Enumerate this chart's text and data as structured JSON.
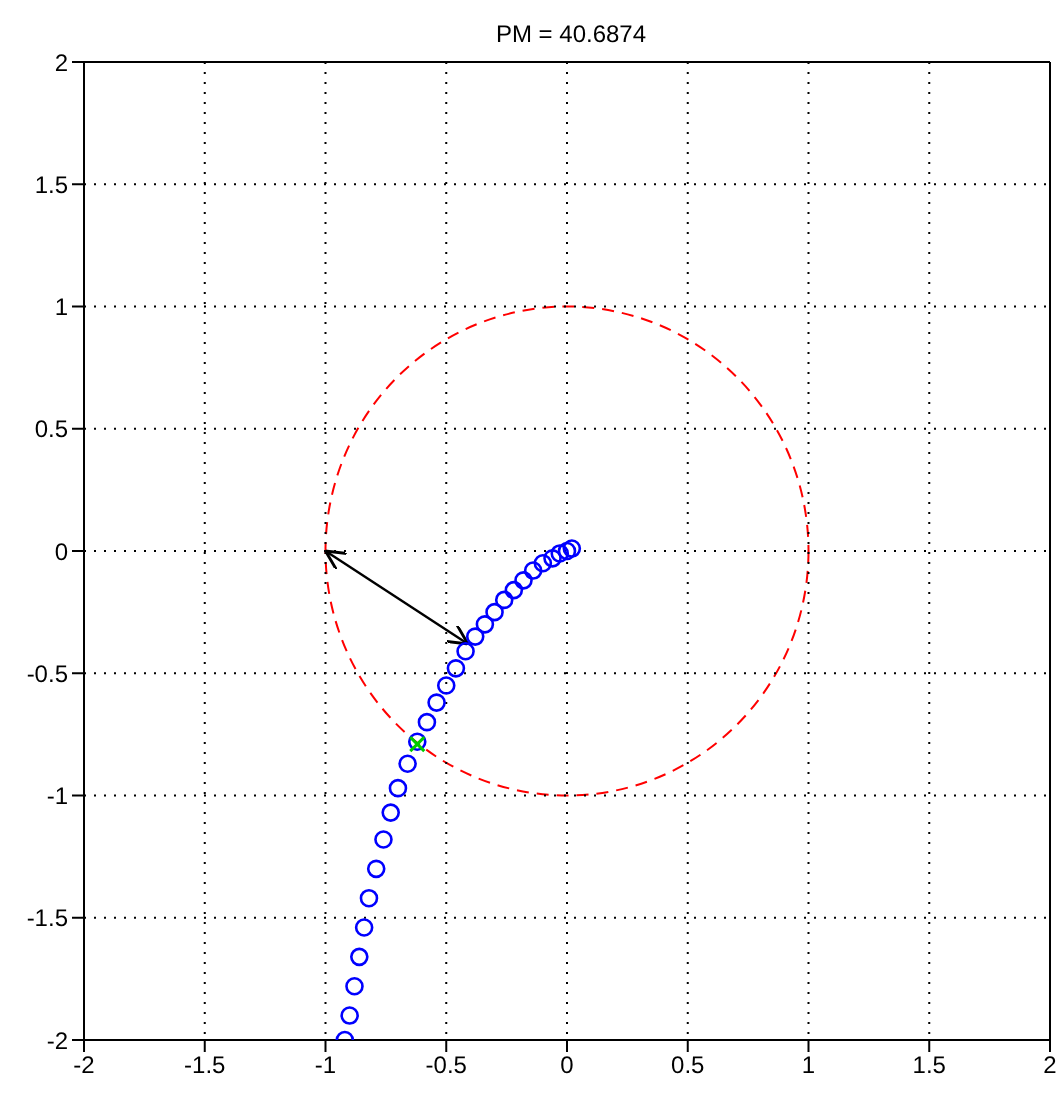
{
  "chart_data": {
    "type": "scatter",
    "title": "PM = 40.6874",
    "xlim": [
      -2,
      2
    ],
    "ylim": [
      -2,
      2
    ],
    "xticks": [
      -2,
      -1.5,
      -1,
      -0.5,
      0,
      0.5,
      1,
      1.5,
      2
    ],
    "yticks": [
      -2,
      -1.5,
      -1,
      -0.5,
      0,
      0.5,
      1,
      1.5,
      2
    ],
    "grid": true,
    "series": [
      {
        "color": "#0000ff",
        "marker": "circle",
        "x": [
          0.02,
          0,
          -0.03,
          -0.06,
          -0.1,
          -0.14,
          -0.18,
          -0.22,
          -0.26,
          -0.3,
          -0.34,
          -0.38,
          -0.42,
          -0.46,
          -0.5,
          -0.54,
          -0.58,
          -0.62,
          -0.66,
          -0.7,
          -0.73,
          -0.76,
          -0.79,
          -0.82,
          -0.84,
          -0.86,
          -0.88,
          -0.9,
          -0.92
        ],
        "values": [
          0.01,
          0,
          -0.01,
          -0.03,
          -0.05,
          -0.08,
          -0.12,
          -0.16,
          -0.2,
          -0.25,
          -0.3,
          -0.35,
          -0.41,
          -0.48,
          -0.55,
          -0.62,
          -0.7,
          -0.78,
          -0.87,
          -0.97,
          -1.07,
          -1.18,
          -1.3,
          -1.42,
          -1.54,
          -1.66,
          -1.78,
          -1.9,
          -2
        ]
      },
      {
        "color": "#00cc00",
        "marker": "cross",
        "x": [
          -0.62
        ],
        "values": [
          -0.79
        ]
      },
      {
        "type": "line",
        "color": "#000000",
        "line_style": "solid",
        "x": [
          -1,
          -0.41
        ],
        "values": [
          0,
          -0.38
        ]
      }
    ]
  }
}
